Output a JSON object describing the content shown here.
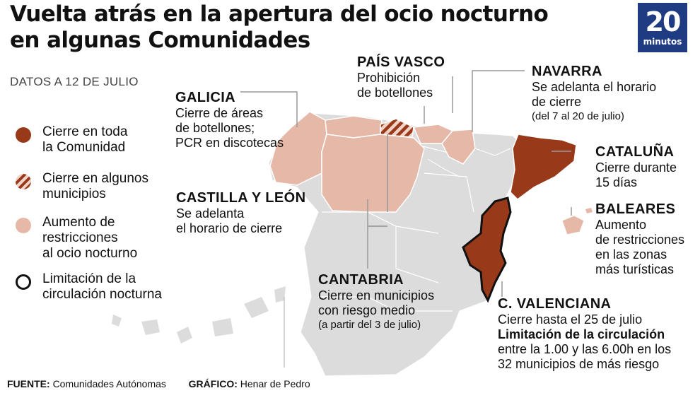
{
  "title": {
    "line1": "Vuelta atrás en la apertura del ocio nocturno",
    "line2": "en algunas Comunidades"
  },
  "date": "DATOS A 12 DE JULIO",
  "logo": {
    "number": "20",
    "word": "minutos"
  },
  "legend": [
    {
      "line1": "Cierre en toda",
      "line2": "la Comunidad",
      "line3": ""
    },
    {
      "line1": "Cierre en algunos",
      "line2": "municipios",
      "line3": ""
    },
    {
      "line1": "Aumento de",
      "line2": "restricciones",
      "line3": "al ocio nocturno"
    },
    {
      "line1": "Limitación de la",
      "line2": "circulación nocturna",
      "line3": ""
    }
  ],
  "regions": {
    "galicia": {
      "name": "GALICIA",
      "lines": [
        "Cierre de áreas",
        "de botellones;",
        "PCR en discotecas"
      ]
    },
    "pais_vasco": {
      "name": "PAÍS VASCO",
      "lines": [
        "Prohibición",
        "de botellones"
      ]
    },
    "navarra": {
      "name": "NAVARRA",
      "lines": [
        "Se adelanta el horario",
        "de cierre"
      ],
      "note": "(del 7 al 20 de julio)"
    },
    "cataluna": {
      "name": "CATALUÑA",
      "lines": [
        "Cierre durante",
        "15 días"
      ]
    },
    "baleares": {
      "name": "BALEARES",
      "lines": [
        "Aumento",
        "de restricciones",
        "en las zonas",
        "más turísticas"
      ]
    },
    "castilla_leon": {
      "name": "CASTILLA Y LEÓN",
      "lines": [
        "Se adelanta",
        "el horario de cierre"
      ]
    },
    "cantabria": {
      "name": "CANTABRIA",
      "lines": [
        "Cierre en municipios",
        "con riesgo medio"
      ],
      "note": "(a partir del 3 de julio)"
    },
    "valenciana": {
      "name": "C. VALENCIANA",
      "line1": "Cierre hasta el 25 de julio",
      "bold": "Limitación de la circulación",
      "line2": "entre la 1.00 y las 6.00h en los",
      "line3": "32 municipios de más riesgo"
    }
  },
  "footer": {
    "source_label": "FUENTE:",
    "source": "Comunidades Autónomas",
    "graphic_label": "GRÁFICO:",
    "graphic": "Henar de Pedro"
  },
  "colors": {
    "full_closure": "#983a19",
    "partial_stripe_light": "#f1d3c8",
    "increased_restrictions": "#e6b8a8",
    "no_change": "#dcdcdc",
    "logo_blue": "#1f3b82"
  }
}
